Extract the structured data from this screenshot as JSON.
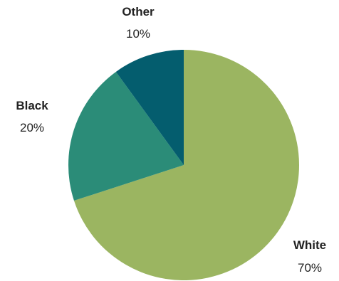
{
  "chart_data": {
    "type": "pie",
    "title": "",
    "slices": [
      {
        "label": "White",
        "value": 70,
        "value_label": "70%",
        "color": "#9bb561"
      },
      {
        "label": "Black",
        "value": 20,
        "value_label": "20%",
        "color": "#2b8c78"
      },
      {
        "label": "Other",
        "value": 10,
        "value_label": "10%",
        "color": "#045d6e"
      }
    ],
    "start_angle": "12 o'clock",
    "direction": "clockwise",
    "legend": "none"
  }
}
